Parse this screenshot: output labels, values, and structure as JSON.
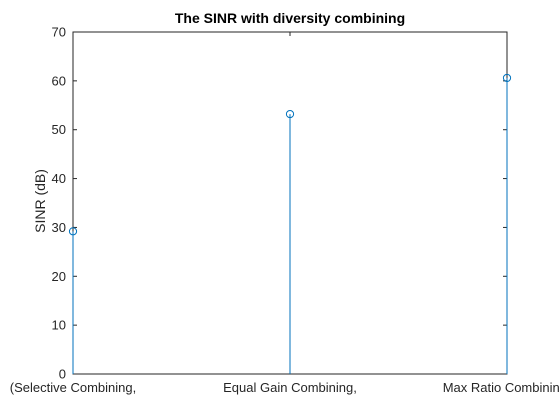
{
  "chart_data": {
    "type": "stem",
    "title": "The SINR with diversity combining",
    "xlabel": "",
    "ylabel": "SINR (dB)",
    "categories": [
      "(Selective Combining,",
      "Equal Gain Combining,",
      "Max Ratio Combining)"
    ],
    "x": [
      1,
      2,
      3
    ],
    "values": [
      29.2,
      53.2,
      60.6
    ],
    "xlim": [
      1,
      3
    ],
    "ylim": [
      0,
      70
    ],
    "yticks": [
      0,
      10,
      20,
      30,
      40,
      50,
      60,
      70
    ],
    "ytick_labels": [
      "0",
      "10",
      "20",
      "30",
      "40",
      "50",
      "60",
      "70"
    ],
    "grid": false,
    "box": true,
    "marker": "circle-open",
    "series_color": "#0072BD",
    "axis_color": "#262626"
  }
}
